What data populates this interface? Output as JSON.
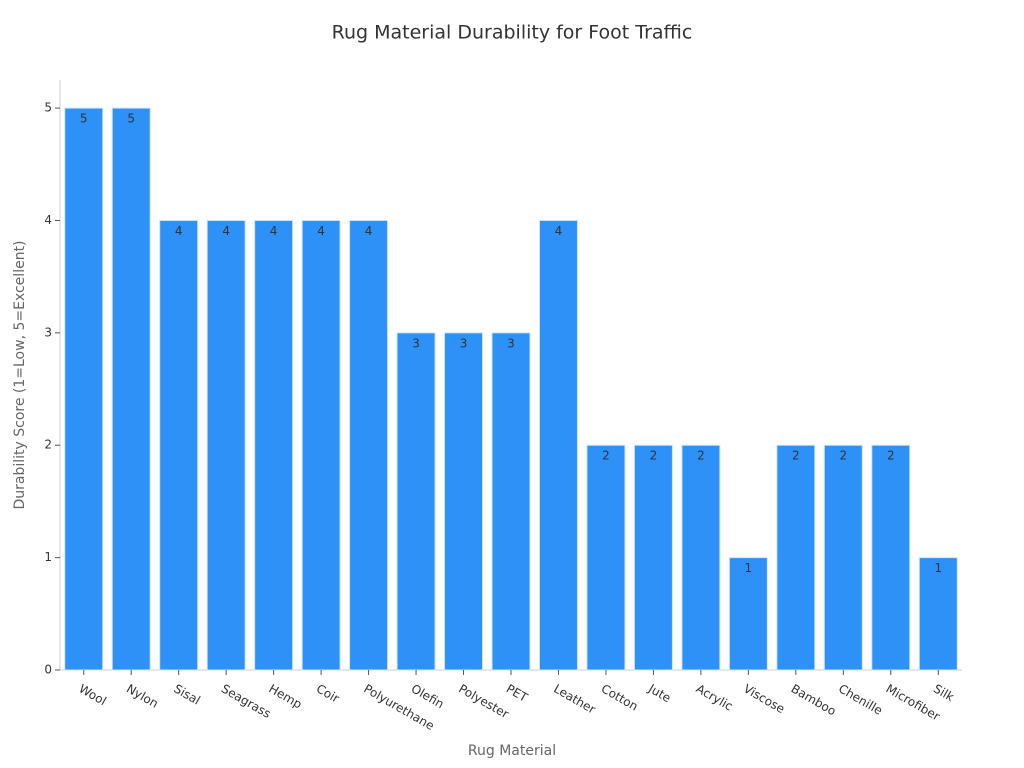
{
  "chart_data": {
    "type": "bar",
    "title": "Rug Material Durability for Foot Traffic",
    "x_label": "Rug Material",
    "y_label": "Durability Score (1=Low, 5=Excellent)",
    "categories": [
      "Wool",
      "Nylon",
      "Sisal",
      "Seagrass",
      "Hemp",
      "Coir",
      "Polyurethane",
      "Olefin",
      "Polyester",
      "PET",
      "Leather",
      "Cotton",
      "Jute",
      "Acrylic",
      "Viscose",
      "Bamboo",
      "Chenille",
      "Microfiber",
      "Silk"
    ],
    "values": [
      5,
      5,
      4,
      4,
      4,
      4,
      4,
      3,
      3,
      3,
      4,
      2,
      2,
      2,
      1,
      2,
      2,
      2,
      1
    ],
    "color": "#2e91f8",
    "ylim": [
      0,
      5.25
    ],
    "yticks": [
      0,
      1,
      2,
      3,
      4,
      5
    ],
    "grid": false
  }
}
